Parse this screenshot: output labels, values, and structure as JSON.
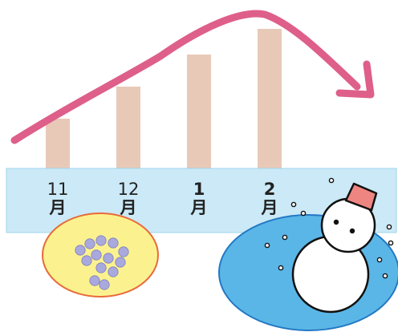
{
  "chart_data": {
    "type": "bar",
    "categories": [
      "11\n月",
      "12\n月",
      "1\n月",
      "2\n月"
    ],
    "tick_labels": [
      {
        "number": "11",
        "unit": "月"
      },
      {
        "number": "12",
        "unit": "月"
      },
      {
        "number": "1",
        "unit": "月"
      },
      {
        "number": "2",
        "unit": "月"
      }
    ],
    "values": [
      4,
      6.5,
      9,
      11
    ],
    "trend": "rises through the months, peaks after 2月, then falls",
    "ylim": [
      0,
      12
    ],
    "grid": false,
    "legend": "none",
    "colors": {
      "bar": "#e8c9b8",
      "trend_arrow": "#de5f8a",
      "band": "#cbe9f6",
      "band_border": "#9fd5ee",
      "tick_text": "#222222"
    }
  },
  "illustrations": {
    "icon_left": "frost-crystals-icon",
    "icon_right": "snowman-icon",
    "colors": {
      "frost_disc": "#fbf28f",
      "frost_disc_border": "#e96a3a",
      "frost_dot": "#a9a9dd",
      "snow_disc": "#5ab6e6",
      "snow_disc_border": "#2378c4",
      "snowman_hat": "#ef8581",
      "snowman_body": "#ffffff"
    }
  }
}
